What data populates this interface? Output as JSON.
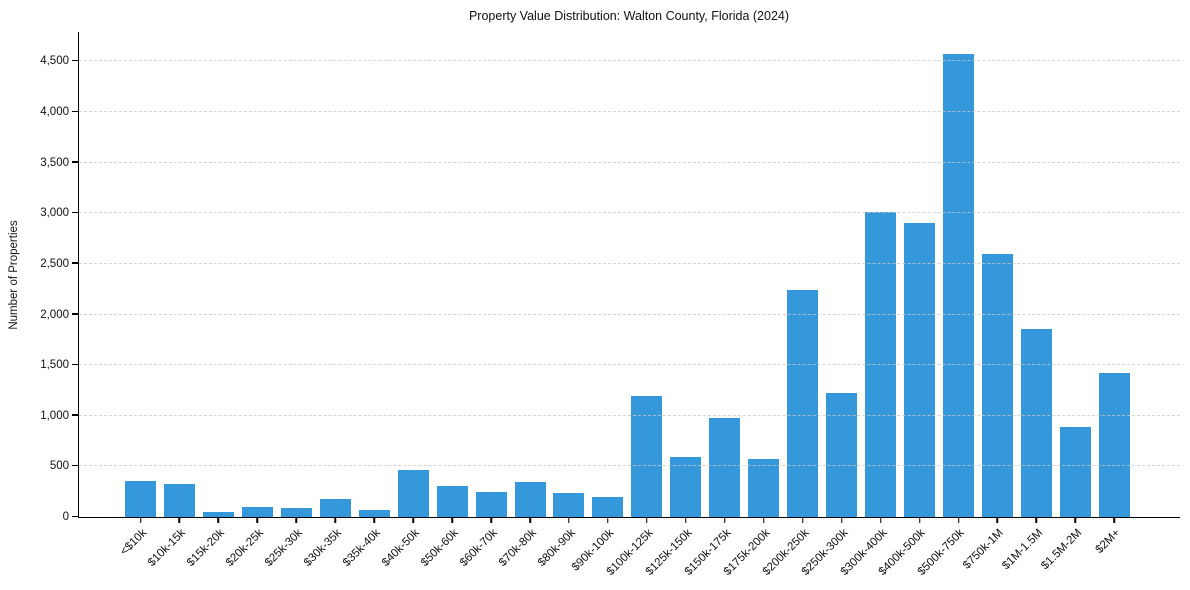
{
  "chart_data": {
    "type": "bar",
    "title": "Property Value Distribution: Walton County, Florida (2024)",
    "xlabel": "",
    "ylabel": "Number of Properties",
    "categories": [
      "<$10k",
      "$10k-15k",
      "$15k-20k",
      "$20k-25k",
      "$25k-30k",
      "$30k-35k",
      "$35k-40k",
      "$40k-50k",
      "$50k-60k",
      "$60k-70k",
      "$70k-80k",
      "$80k-90k",
      "$90k-100k",
      "$100k-125k",
      "$125k-150k",
      "$150k-175k",
      "$175k-200k",
      "$200k-250k",
      "$250k-300k",
      "$300k-400k",
      "$400k-500k",
      "$500k-750k",
      "$750k-1M",
      "$1M-1.5M",
      "$1.5M-2M",
      "$2M+"
    ],
    "values": [
      360,
      330,
      45,
      100,
      90,
      175,
      65,
      460,
      305,
      245,
      345,
      235,
      200,
      1200,
      590,
      975,
      570,
      2240,
      1220,
      3010,
      2900,
      4570,
      2600,
      1855,
      890,
      1420
    ],
    "yticks": [
      0,
      500,
      1000,
      1500,
      2000,
      2500,
      3000,
      3500,
      4000,
      4500
    ],
    "ytick_labels": [
      "0",
      "500",
      "1,000",
      "1,500",
      "2,000",
      "2,500",
      "3,000",
      "3,500",
      "4,000",
      "4,500"
    ],
    "ylim": [
      0,
      4790
    ],
    "grid": "horizontal-dashed",
    "legend": "none",
    "bar_color": "#3498db",
    "gridline_color": "#c9c9c9",
    "axis_color": "#000000"
  }
}
